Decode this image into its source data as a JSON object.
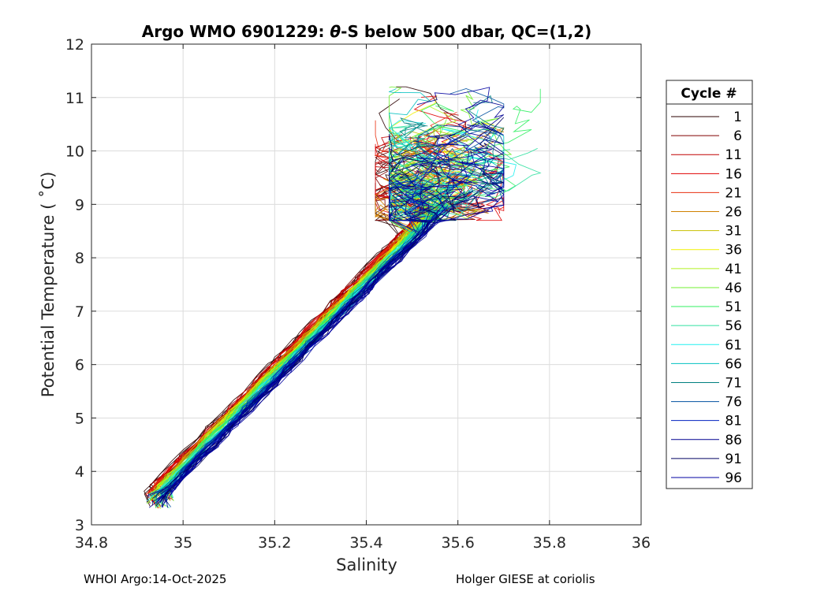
{
  "chart_data": {
    "type": "line",
    "title_prefix": "Argo WMO 6901229: ",
    "title_theta": "θ",
    "title_suffix": "-S below 500 dbar,  QC=(1,2)",
    "xlabel": "Salinity",
    "ylabel": "Potential Temperature ( ˚C)",
    "xlim": [
      34.8,
      36
    ],
    "ylim": [
      3,
      12
    ],
    "xticks": [
      "34.8",
      "35",
      "35.2",
      "35.4",
      "35.6",
      "35.8",
      "36"
    ],
    "yticks": [
      "3",
      "4",
      "5",
      "6",
      "7",
      "8",
      "9",
      "10",
      "11",
      "12"
    ],
    "grid": true,
    "legend": {
      "title": "Cycle #",
      "placement": "outside-right",
      "entries": [
        {
          "label": "1",
          "color": "#2b0000"
        },
        {
          "label": "6",
          "color": "#800000"
        },
        {
          "label": "11",
          "color": "#c00000"
        },
        {
          "label": "16",
          "color": "#e00000"
        },
        {
          "label": "21",
          "color": "#e83010"
        },
        {
          "label": "26",
          "color": "#d08000"
        },
        {
          "label": "31",
          "color": "#c8c000"
        },
        {
          "label": "36",
          "color": "#f0f000"
        },
        {
          "label": "41",
          "color": "#b0f020"
        },
        {
          "label": "46",
          "color": "#70f030"
        },
        {
          "label": "51",
          "color": "#30f060"
        },
        {
          "label": "56",
          "color": "#30e0a0"
        },
        {
          "label": "61",
          "color": "#20f0f0"
        },
        {
          "label": "66",
          "color": "#00c0c0"
        },
        {
          "label": "71",
          "color": "#008080"
        },
        {
          "label": "76",
          "color": "#0050a0"
        },
        {
          "label": "81",
          "color": "#0020c0"
        },
        {
          "label": "86",
          "color": "#000090"
        },
        {
          "label": "91",
          "color": "#000060"
        },
        {
          "label": "96",
          "color": "#0000a0"
        }
      ]
    },
    "profile_envelope": {
      "deep_salinity_range": [
        34.92,
        34.98
      ],
      "deep_temperature": 3.3,
      "upper_salinity_range": [
        35.38,
        35.82
      ],
      "upper_temperature_range": [
        8.7,
        11.2
      ]
    }
  },
  "footer": {
    "left": "WHOI Argo:14-Oct-2025",
    "right": "Holger GIESE at coriolis"
  }
}
